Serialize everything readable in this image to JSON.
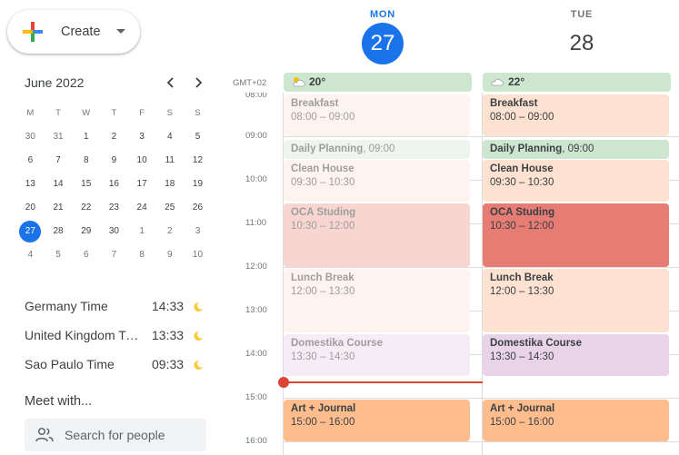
{
  "create": {
    "label": "Create"
  },
  "mini_calendar": {
    "title": "June 2022",
    "weekdays": [
      "M",
      "T",
      "W",
      "T",
      "F",
      "S",
      "S"
    ],
    "weeks": [
      [
        "30",
        "31",
        "1",
        "2",
        "3",
        "4",
        "5"
      ],
      [
        "6",
        "7",
        "8",
        "9",
        "10",
        "11",
        "12"
      ],
      [
        "13",
        "14",
        "15",
        "16",
        "17",
        "18",
        "19"
      ],
      [
        "20",
        "21",
        "22",
        "23",
        "24",
        "25",
        "26"
      ],
      [
        "27",
        "28",
        "29",
        "30",
        "1",
        "2",
        "3"
      ],
      [
        "4",
        "5",
        "6",
        "7",
        "8",
        "9",
        "10"
      ]
    ]
  },
  "time_zones": [
    {
      "name": "Germany Time",
      "time": "14:33"
    },
    {
      "name": "United Kingdom Time",
      "time": "13:33"
    },
    {
      "name": "Sao Paulo Time",
      "time": "09:33"
    }
  ],
  "meet": {
    "title": "Meet with...",
    "search_placeholder": "Search for people"
  },
  "days": [
    {
      "dow": "MON",
      "num": "27",
      "weather": "20°"
    },
    {
      "dow": "TUE",
      "num": "28",
      "weather": "22°"
    }
  ],
  "timezone_label": "GMT+02",
  "hours": [
    "08:00",
    "09:00",
    "10:00",
    "11:00",
    "12:00",
    "13:00",
    "14:00",
    "15:00",
    "16:00"
  ],
  "events": {
    "mon": [
      {
        "title": "Breakfast",
        "time": "08:00 – 09:00",
        "bg": "#fef4ef",
        "fg": "#9e9e9e"
      },
      {
        "title": "Daily Planning",
        "time": ", 09:00",
        "bg": "#eef5ef",
        "fg": "#9e9e9e"
      },
      {
        "title": "Clean House",
        "time": "09:30 – 10:30",
        "bg": "#fef4ef",
        "fg": "#9e9e9e"
      },
      {
        "title": "OCA Studing",
        "time": "10:30 – 12:00",
        "bg": "#f8d5d1",
        "fg": "#9e9e9e"
      },
      {
        "title": "Lunch Break",
        "time": "12:00 – 13:30",
        "bg": "#fef4ef",
        "fg": "#9e9e9e"
      },
      {
        "title": "Domestika Course",
        "time": "13:30 – 14:30",
        "bg": "#f6ecf6",
        "fg": "#9e9e9e"
      },
      {
        "title": "Art + Journal",
        "time": "15:00 – 16:00",
        "bg": "#ffbd8e",
        "fg": "#3c4043"
      }
    ],
    "tue": [
      {
        "title": "Breakfast",
        "time": "08:00 – 09:00",
        "bg": "#fde1d1",
        "fg": "#3c4043"
      },
      {
        "title": "Daily Planning",
        "time": ", 09:00",
        "bg": "#cde6d0",
        "fg": "#3c4043"
      },
      {
        "title": "Clean House",
        "time": "09:30 – 10:30",
        "bg": "#fde1d1",
        "fg": "#3c4043"
      },
      {
        "title": "OCA Studing",
        "time": "10:30 – 12:00",
        "bg": "#e67c73",
        "fg": "#3c4043"
      },
      {
        "title": "Lunch Break",
        "time": "12:00 – 13:30",
        "bg": "#fde1d1",
        "fg": "#3c4043"
      },
      {
        "title": "Domestika Course",
        "time": "13:30 – 14:30",
        "bg": "#e8d3e8",
        "fg": "#3c4043"
      },
      {
        "title": "Art + Journal",
        "time": "15:00 – 16:00",
        "bg": "#ffbd8e",
        "fg": "#3c4043"
      }
    ]
  },
  "colors": {
    "accent": "#1a73e8",
    "now_indicator": "#db4437",
    "weather_bg": "#cde6d0"
  }
}
